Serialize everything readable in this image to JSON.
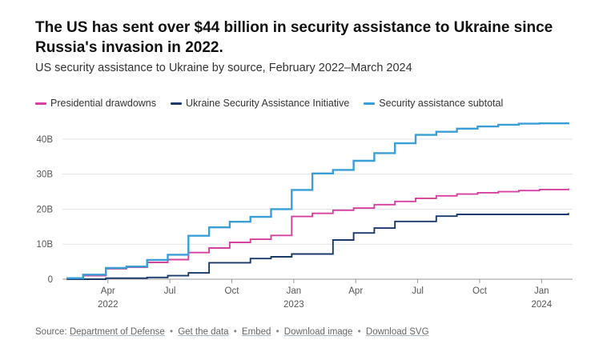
{
  "header": {
    "title": "The US has sent over $44 billion in security assistance to Ukraine since Russia's invasion in 2022.",
    "subtitle": "US security assistance to Ukraine by source, February 2022–March 2024"
  },
  "legend": [
    {
      "name": "Presidential drawdowns",
      "color": "#d6409f"
    },
    {
      "name": "Ukraine Security Assistance Initiative",
      "color": "#1b3a6b"
    },
    {
      "name": "Security assistance subtotal",
      "color": "#3a9fd6"
    }
  ],
  "footer": {
    "source_prefix": "Source:",
    "source_link": "Department of Defense",
    "links": [
      "Get the data",
      "Embed",
      "Download image",
      "Download SVG"
    ]
  },
  "chart_data": {
    "type": "line",
    "step": true,
    "title": "US security assistance to Ukraine by source, February 2022–March 2024",
    "ylabel": "",
    "xlabel": "",
    "ylim": [
      0,
      45
    ],
    "yticks": [
      {
        "v": 0,
        "label": "0"
      },
      {
        "v": 10,
        "label": "10B"
      },
      {
        "v": 20,
        "label": "20B"
      },
      {
        "v": 30,
        "label": "30B"
      },
      {
        "v": 40,
        "label": "40B"
      }
    ],
    "xlim": [
      1.8,
      26.5
    ],
    "xticks": [
      {
        "x": 4,
        "label": "Apr",
        "year": "2022"
      },
      {
        "x": 7,
        "label": "Jul",
        "year": ""
      },
      {
        "x": 10,
        "label": "Oct",
        "year": ""
      },
      {
        "x": 13,
        "label": "Jan",
        "year": "2023"
      },
      {
        "x": 16,
        "label": "Apr",
        "year": ""
      },
      {
        "x": 19,
        "label": "Jul",
        "year": ""
      },
      {
        "x": 22,
        "label": "Oct",
        "year": ""
      },
      {
        "x": 25,
        "label": "Jan",
        "year": "2024"
      }
    ],
    "series": [
      {
        "name": "Presidential drawdowns",
        "color": "#d6409f",
        "x": [
          2.0,
          2.8,
          3.9,
          4.9,
          5.9,
          6.9,
          7.9,
          8.9,
          9.9,
          10.9,
          11.9,
          12.9,
          13.9,
          14.9,
          15.9,
          16.9,
          17.9,
          18.9,
          19.9,
          20.9,
          21.9,
          22.9,
          23.9,
          24.9,
          26.3
        ],
        "values": [
          0.3,
          1.0,
          3.0,
          3.4,
          4.8,
          5.6,
          7.6,
          8.9,
          10.5,
          11.4,
          12.5,
          17.9,
          18.8,
          19.7,
          20.3,
          21.3,
          22.2,
          23.1,
          23.8,
          24.3,
          24.7,
          25.0,
          25.3,
          25.6,
          25.9
        ]
      },
      {
        "name": "Ukraine Security Assistance Initiative",
        "color": "#1b3a6b",
        "x": [
          2.0,
          3.9,
          5.9,
          6.9,
          7.9,
          8.9,
          10.9,
          11.9,
          12.9,
          14.9,
          15.9,
          16.9,
          17.9,
          19.9,
          20.9,
          26.3
        ],
        "values": [
          0.0,
          0.3,
          0.5,
          1.0,
          1.8,
          4.7,
          5.9,
          6.4,
          7.2,
          11.2,
          13.2,
          14.6,
          16.5,
          18.0,
          18.5,
          18.9
        ]
      },
      {
        "name": "Security assistance subtotal",
        "color": "#3a9fd6",
        "x": [
          2.0,
          2.8,
          3.9,
          4.9,
          5.9,
          6.9,
          7.9,
          8.9,
          9.9,
          10.9,
          11.9,
          12.9,
          13.9,
          14.9,
          15.9,
          16.9,
          17.9,
          18.9,
          19.9,
          20.9,
          21.9,
          22.9,
          23.9,
          24.9,
          26.3
        ],
        "values": [
          0.3,
          1.3,
          3.2,
          3.6,
          5.5,
          7.0,
          12.4,
          14.8,
          16.4,
          17.8,
          20.0,
          25.5,
          30.2,
          31.2,
          33.8,
          36.0,
          38.8,
          41.2,
          42.1,
          43.0,
          43.6,
          44.1,
          44.4,
          44.5,
          44.7
        ]
      }
    ]
  }
}
